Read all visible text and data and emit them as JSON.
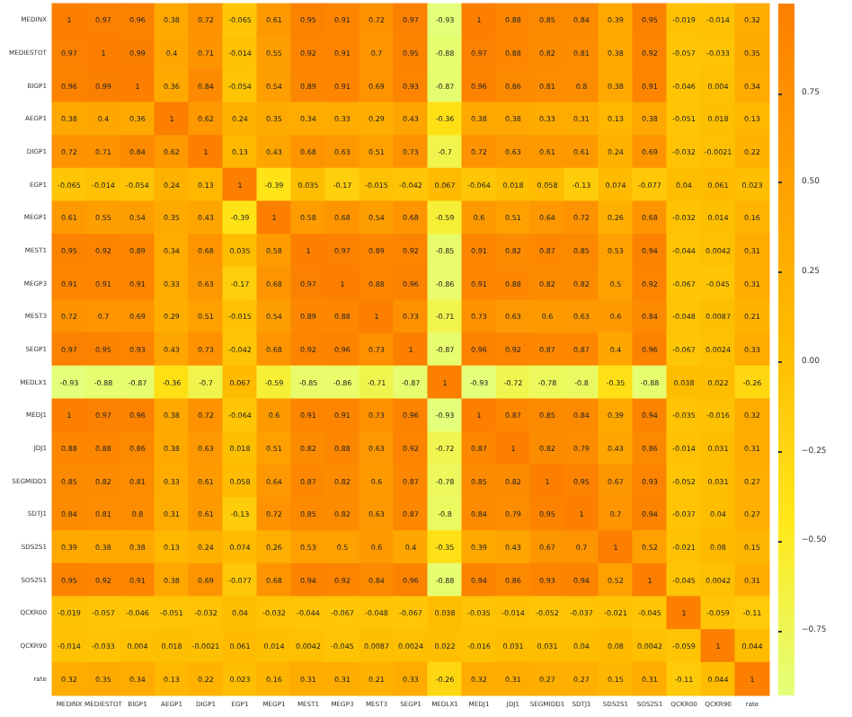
{
  "chart_data": {
    "type": "heatmap",
    "categories": [
      "MEDINX",
      "MEDIESTOT",
      "BIGP1",
      "AEGP1",
      "DIGP1",
      "EGP1",
      "MEGP1",
      "MEST1",
      "MEGP3",
      "MEST3",
      "SEGP1",
      "MEDLX1",
      "MEDJ1",
      "JDJ1",
      "SEGMIDD1",
      "SDTJ1",
      "SDS2S1",
      "SOS2S1",
      "QCKR00",
      "QCKR90",
      "rate"
    ],
    "y_categories": [
      "MEDINX",
      "MEDIESTOT",
      "BIGP1",
      "AEGP1",
      "DIGP1",
      "EGP1",
      "MEGP1",
      "MEST1",
      "MEGP3",
      "MEST3",
      "SEGP1",
      "MEDLX1",
      "MEDJ1",
      "JDJ1",
      "SEGMIDD1",
      "SDTJ1",
      "SDS2S1",
      "SOS2S1",
      "QCKR00",
      "QCKR90",
      "rate"
    ],
    "cells": [
      [
        1,
        0.97,
        0.96,
        0.38,
        0.72,
        -0.065,
        0.61,
        0.95,
        0.91,
        0.72,
        0.97,
        -0.93,
        1,
        0.88,
        0.85,
        0.84,
        0.39,
        0.95,
        -0.019,
        -0.014,
        0.32
      ],
      [
        0.97,
        1,
        0.99,
        0.4,
        0.71,
        -0.014,
        0.55,
        0.92,
        0.91,
        0.7,
        0.95,
        -0.88,
        0.97,
        0.88,
        0.82,
        0.81,
        0.38,
        0.92,
        -0.057,
        -0.033,
        0.35
      ],
      [
        0.96,
        0.99,
        1,
        0.36,
        0.84,
        -0.054,
        0.54,
        0.89,
        0.91,
        0.69,
        0.93,
        -0.87,
        0.96,
        0.86,
        0.81,
        0.8,
        0.38,
        0.91,
        -0.046,
        0.004,
        0.34
      ],
      [
        0.38,
        0.4,
        0.36,
        1,
        0.62,
        0.24,
        0.35,
        0.34,
        0.33,
        0.29,
        0.43,
        -0.36,
        0.38,
        0.38,
        0.33,
        0.31,
        0.13,
        0.38,
        -0.051,
        0.018,
        0.13
      ],
      [
        0.72,
        0.71,
        0.84,
        0.62,
        1,
        0.13,
        0.43,
        0.68,
        0.63,
        0.51,
        0.73,
        -0.7,
        0.72,
        0.63,
        0.61,
        0.61,
        0.24,
        0.69,
        -0.032,
        -0.0021,
        0.22
      ],
      [
        -0.065,
        -0.014,
        -0.054,
        0.24,
        0.13,
        1,
        -0.39,
        0.035,
        -0.17,
        -0.015,
        -0.042,
        0.067,
        -0.064,
        0.018,
        0.058,
        -0.13,
        0.074,
        -0.077,
        0.04,
        0.061,
        0.023
      ],
      [
        0.61,
        0.55,
        0.54,
        0.35,
        0.43,
        -0.39,
        1,
        0.58,
        0.68,
        0.54,
        0.68,
        -0.59,
        0.6,
        0.51,
        0.64,
        0.72,
        0.26,
        0.68,
        -0.032,
        0.014,
        0.16
      ],
      [
        0.95,
        0.92,
        0.89,
        0.34,
        0.68,
        0.035,
        0.58,
        1,
        0.97,
        0.89,
        0.92,
        -0.85,
        0.91,
        0.82,
        0.87,
        0.85,
        0.53,
        0.94,
        -0.044,
        0.0042,
        0.31
      ],
      [
        0.91,
        0.91,
        0.91,
        0.33,
        0.63,
        -0.17,
        0.68,
        0.97,
        1,
        0.88,
        0.96,
        -0.86,
        0.91,
        0.88,
        0.82,
        0.82,
        0.5,
        0.92,
        -0.067,
        -0.045,
        0.31
      ],
      [
        0.72,
        0.7,
        0.69,
        0.29,
        0.51,
        -0.015,
        0.54,
        0.89,
        0.88,
        1,
        0.73,
        -0.71,
        0.73,
        0.63,
        0.6,
        0.63,
        0.6,
        0.84,
        -0.048,
        0.0087,
        0.21
      ],
      [
        0.97,
        0.95,
        0.93,
        0.43,
        0.73,
        -0.042,
        0.68,
        0.92,
        0.96,
        0.73,
        1,
        -0.87,
        0.96,
        0.92,
        0.87,
        0.87,
        0.4,
        0.96,
        -0.067,
        0.0024,
        0.33
      ],
      [
        -0.93,
        -0.88,
        -0.87,
        -0.36,
        -0.7,
        0.067,
        -0.59,
        -0.85,
        -0.86,
        -0.71,
        -0.87,
        1,
        -0.93,
        -0.72,
        -0.78,
        -0.8,
        -0.35,
        -0.88,
        0.038,
        0.022,
        -0.26
      ],
      [
        1,
        0.97,
        0.96,
        0.38,
        0.72,
        -0.064,
        0.6,
        0.91,
        0.91,
        0.73,
        0.96,
        -0.93,
        1,
        0.87,
        0.85,
        0.84,
        0.39,
        0.94,
        -0.035,
        -0.016,
        0.32
      ],
      [
        0.88,
        0.88,
        0.86,
        0.38,
        0.63,
        0.018,
        0.51,
        0.82,
        0.88,
        0.63,
        0.92,
        -0.72,
        0.87,
        1,
        0.82,
        0.79,
        0.43,
        0.86,
        -0.014,
        0.031,
        0.31
      ],
      [
        0.85,
        0.82,
        0.81,
        0.33,
        0.61,
        0.058,
        0.64,
        0.87,
        0.82,
        0.6,
        0.87,
        -0.78,
        0.85,
        0.82,
        1,
        0.95,
        0.67,
        0.93,
        -0.052,
        0.031,
        0.27
      ],
      [
        0.84,
        0.81,
        0.8,
        0.31,
        0.61,
        -0.13,
        0.72,
        0.85,
        0.82,
        0.63,
        0.87,
        -0.8,
        0.84,
        0.79,
        0.95,
        1,
        0.7,
        0.94,
        -0.037,
        0.04,
        0.27
      ],
      [
        0.39,
        0.38,
        0.38,
        0.13,
        0.24,
        0.074,
        0.26,
        0.53,
        0.5,
        0.6,
        0.4,
        -0.35,
        0.39,
        0.43,
        0.67,
        0.7,
        1,
        0.52,
        -0.021,
        0.08,
        0.15
      ],
      [
        0.95,
        0.92,
        0.91,
        0.38,
        0.69,
        -0.077,
        0.68,
        0.94,
        0.92,
        0.84,
        0.96,
        -0.88,
        0.94,
        0.86,
        0.93,
        0.94,
        0.52,
        1,
        -0.045,
        0.0042,
        0.31
      ],
      [
        -0.019,
        -0.057,
        -0.046,
        -0.051,
        -0.032,
        0.04,
        -0.032,
        -0.044,
        -0.067,
        -0.048,
        -0.067,
        0.038,
        -0.035,
        -0.014,
        -0.052,
        -0.037,
        -0.021,
        -0.045,
        1,
        -0.059,
        -0.11
      ],
      [
        -0.014,
        -0.033,
        0.004,
        0.018,
        -0.0021,
        0.061,
        0.014,
        0.0042,
        -0.045,
        0.0087,
        0.0024,
        0.022,
        -0.016,
        0.031,
        0.031,
        0.04,
        0.08,
        0.0042,
        -0.059,
        1,
        0.044
      ],
      [
        0.32,
        0.35,
        0.34,
        0.13,
        0.22,
        0.023,
        0.16,
        0.31,
        0.31,
        0.21,
        0.33,
        -0.26,
        0.32,
        0.31,
        0.27,
        0.27,
        0.15,
        0.31,
        -0.11,
        0.044,
        1
      ]
    ],
    "clim": [
      -0.93,
      1
    ],
    "data_labels": true,
    "cticks": [
      {
        "value": -0.75,
        "label": "−0.75"
      },
      {
        "value": -0.5,
        "label": "−0.50"
      },
      {
        "value": -0.25,
        "label": "−0.25"
      },
      {
        "value": 0,
        "label": "0.00"
      },
      {
        "value": 0.25,
        "label": "0.25"
      },
      {
        "value": 0.5,
        "label": "0.50"
      },
      {
        "value": 0.75,
        "label": "0.75"
      }
    ]
  }
}
